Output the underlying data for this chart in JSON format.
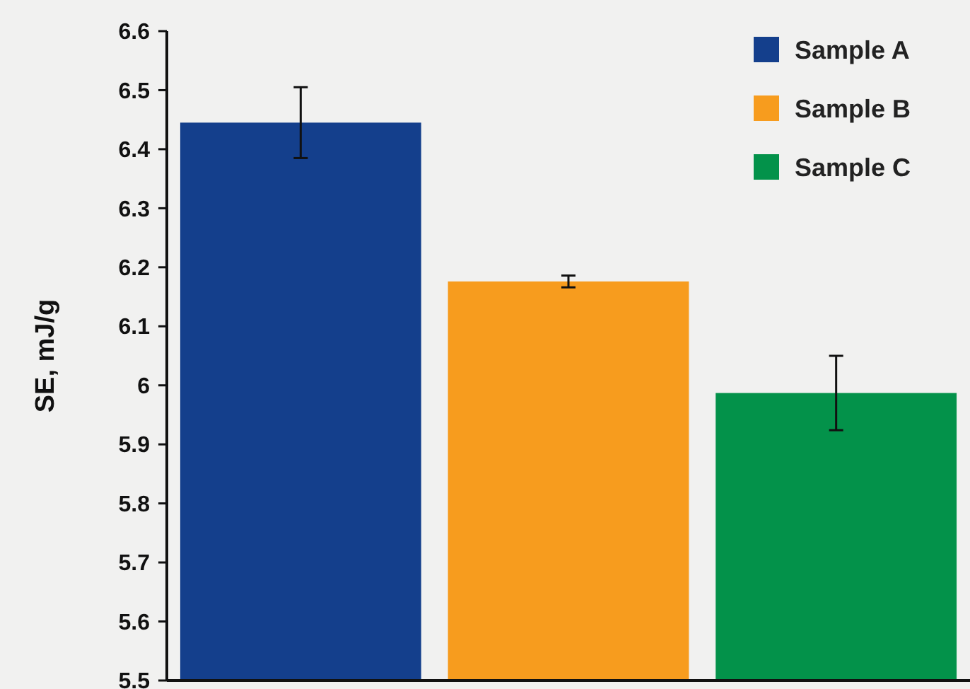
{
  "chart_data": {
    "type": "bar",
    "ylabel": "SE, mJ/g",
    "categories": [
      null,
      null,
      null
    ],
    "series": [
      {
        "name": "Sample A",
        "color": "#143f8c",
        "values": [
          6.445,
          null,
          null
        ],
        "errors": [
          0.06,
          null,
          null
        ]
      },
      {
        "name": "Sample B",
        "color": "#f79c1e",
        "values": [
          null,
          6.176,
          null
        ],
        "errors": [
          null,
          0.01,
          null
        ]
      },
      {
        "name": "Sample C",
        "color": "#03924a",
        "values": [
          null,
          null,
          5.987
        ],
        "errors": [
          null,
          null,
          0.063
        ]
      }
    ],
    "ylim": [
      5.5,
      6.6
    ],
    "yticks": [
      5.5,
      5.6,
      5.7,
      5.8,
      5.9,
      6,
      6.1,
      6.2,
      6.3,
      6.4,
      6.5,
      6.6
    ],
    "legend": "top right",
    "grid": false
  }
}
